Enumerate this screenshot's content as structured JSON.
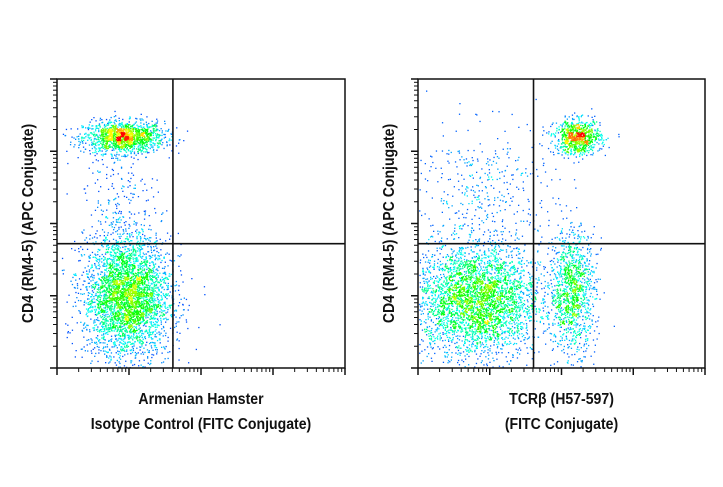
{
  "chart_data": [
    {
      "type": "scatter",
      "subtype": "flow-cytometry-density-dot-plot",
      "xlabel_lines": [
        "Armenian Hamster",
        "Isotype Control (FITC Conjugate)"
      ],
      "ylabel": "CD4 (RM4-5) (APC Conjugate)",
      "x_scale": "log",
      "y_scale": "log",
      "xlim_decades": [
        0,
        4
      ],
      "ylim_decades": [
        0,
        4
      ],
      "quadrant_gate": {
        "x": 1.61,
        "y": 1.72
      },
      "populations": [
        {
          "center": [
            0.92,
            3.2
          ],
          "spread": [
            0.28,
            0.11
          ],
          "events": 1400
        },
        {
          "center": [
            0.97,
            0.99
          ],
          "spread": [
            0.3,
            0.42
          ],
          "events": 3600
        },
        {
          "center": [
            0.9,
            2.3
          ],
          "spread": [
            0.25,
            0.45
          ],
          "events": 200
        }
      ]
    },
    {
      "type": "scatter",
      "subtype": "flow-cytometry-density-dot-plot",
      "xlabel_lines": [
        "TCRβ (H57-597)",
        "(FITC Conjugate)"
      ],
      "ylabel": "CD4 (RM4-5) (APC Conjugate)",
      "x_scale": "log",
      "y_scale": "log",
      "xlim_decades": [
        0,
        4
      ],
      "ylim_decades": [
        0,
        4
      ],
      "quadrant_gate": {
        "x": 1.61,
        "y": 1.72
      },
      "populations": [
        {
          "center": [
            0.8,
            0.95
          ],
          "spread": [
            0.45,
            0.4
          ],
          "events": 3600
        },
        {
          "center": [
            2.15,
            1.08
          ],
          "spread": [
            0.16,
            0.42
          ],
          "events": 1100
        },
        {
          "center": [
            2.22,
            3.2
          ],
          "spread": [
            0.16,
            0.12
          ],
          "events": 800
        },
        {
          "center": [
            0.9,
            2.5
          ],
          "spread": [
            0.5,
            0.45
          ],
          "events": 350
        }
      ]
    }
  ],
  "colormap": [
    "#0000ff",
    "#00ffff",
    "#00ff00",
    "#ffff00",
    "#ff0000"
  ]
}
